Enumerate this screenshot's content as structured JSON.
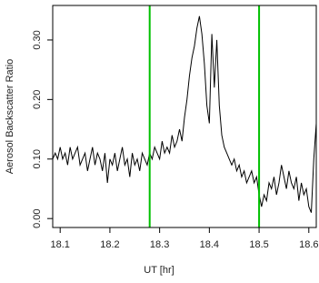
{
  "chart_data": {
    "type": "line",
    "x_label": "UT [hr]",
    "y_label": "Aerosol Backscatter Ratio",
    "x": [
      18.085,
      18.09,
      18.095,
      18.1,
      18.105,
      18.11,
      18.115,
      18.12,
      18.125,
      18.13,
      18.135,
      18.14,
      18.145,
      18.15,
      18.155,
      18.16,
      18.165,
      18.17,
      18.175,
      18.18,
      18.185,
      18.19,
      18.195,
      18.2,
      18.205,
      18.21,
      18.215,
      18.22,
      18.225,
      18.23,
      18.235,
      18.24,
      18.245,
      18.25,
      18.255,
      18.26,
      18.265,
      18.27,
      18.275,
      18.28,
      18.285,
      18.29,
      18.295,
      18.3,
      18.305,
      18.31,
      18.315,
      18.32,
      18.325,
      18.33,
      18.335,
      18.34,
      18.345,
      18.35,
      18.355,
      18.36,
      18.365,
      18.37,
      18.375,
      18.38,
      18.385,
      18.39,
      18.395,
      18.4,
      18.405,
      18.41,
      18.415,
      18.42,
      18.425,
      18.43,
      18.435,
      18.44,
      18.445,
      18.45,
      18.455,
      18.46,
      18.465,
      18.47,
      18.475,
      18.48,
      18.485,
      18.49,
      18.495,
      18.5,
      18.505,
      18.51,
      18.515,
      18.52,
      18.525,
      18.53,
      18.535,
      18.54,
      18.545,
      18.55,
      18.555,
      18.56,
      18.565,
      18.57,
      18.575,
      18.58,
      18.585,
      18.59,
      18.595,
      18.6,
      18.605,
      18.61,
      18.615
    ],
    "series": [
      {
        "color": "#000000",
        "values": [
          0.1,
          0.11,
          0.1,
          0.12,
          0.1,
          0.11,
          0.09,
          0.12,
          0.1,
          0.11,
          0.12,
          0.09,
          0.1,
          0.11,
          0.08,
          0.1,
          0.12,
          0.09,
          0.11,
          0.1,
          0.08,
          0.11,
          0.06,
          0.1,
          0.09,
          0.11,
          0.08,
          0.1,
          0.12,
          0.09,
          0.1,
          0.07,
          0.11,
          0.09,
          0.1,
          0.08,
          0.11,
          0.1,
          0.09,
          0.11,
          0.1,
          0.12,
          0.11,
          0.1,
          0.13,
          0.11,
          0.12,
          0.11,
          0.14,
          0.12,
          0.13,
          0.15,
          0.13,
          0.17,
          0.2,
          0.24,
          0.27,
          0.29,
          0.32,
          0.34,
          0.31,
          0.26,
          0.19,
          0.16,
          0.31,
          0.22,
          0.3,
          0.19,
          0.14,
          0.12,
          0.11,
          0.1,
          0.09,
          0.1,
          0.08,
          0.09,
          0.07,
          0.08,
          0.06,
          0.07,
          0.08,
          0.06,
          0.07,
          0.04,
          0.02,
          0.04,
          0.03,
          0.06,
          0.05,
          0.07,
          0.04,
          0.06,
          0.09,
          0.07,
          0.05,
          0.08,
          0.06,
          0.05,
          0.07,
          0.03,
          0.06,
          0.04,
          0.05,
          0.02,
          0.01,
          0.1,
          0.16
        ]
      }
    ],
    "vlines": [
      18.28,
      18.5
    ],
    "vline_color": "#00c000",
    "xlim": [
      18.085,
      18.615
    ],
    "xticks": [
      18.1,
      18.2,
      18.3,
      18.4,
      18.5,
      18.6
    ],
    "ylim": [
      -0.015,
      0.358
    ],
    "yticks": [
      {
        "value": 0,
        "label": "0.00"
      },
      {
        "value": 0.1,
        "label": "0.10"
      },
      {
        "value": 0.2,
        "label": "0.20"
      },
      {
        "value": 0.3,
        "label": "0.30"
      }
    ]
  }
}
